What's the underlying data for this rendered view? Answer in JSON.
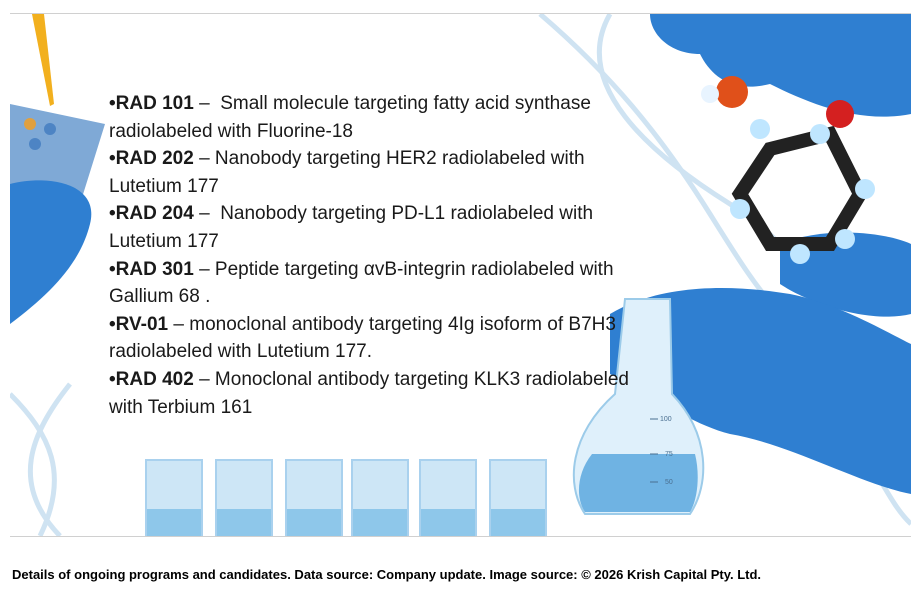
{
  "items": [
    {
      "code": "•RAD 101",
      "text": " –  Small molecule targeting fatty acid synthase radiolabeled with Fluorine-18"
    },
    {
      "code": "•RAD 202",
      "text": " – Nanobody targeting HER2 radiolabeled with Lutetium 177"
    },
    {
      "code": "•RAD 204",
      "text": " –  Nanobody targeting PD-L1 radiolabeled with Lutetium 177"
    },
    {
      "code": "•RAD 301",
      "text": " – Peptide targeting αvB-integrin radiolabeled with Gallium 68 ."
    },
    {
      "code": "•RV-01",
      "text": " – monoclonal antibody targeting 4Ig isoform of B7H3 radiolabeled with Lutetium 177."
    },
    {
      "code": "•RAD 402",
      "text": " – Monoclonal antibody targeting KLK3 radiolabeled with Terbium 161"
    }
  ],
  "flask_marks": [
    "100",
    "75",
    "50"
  ],
  "caption": "Details of ongoing programs and candidates. Data source: Company update. Image source: © 2026 Krish Capital Pty. Ltd."
}
